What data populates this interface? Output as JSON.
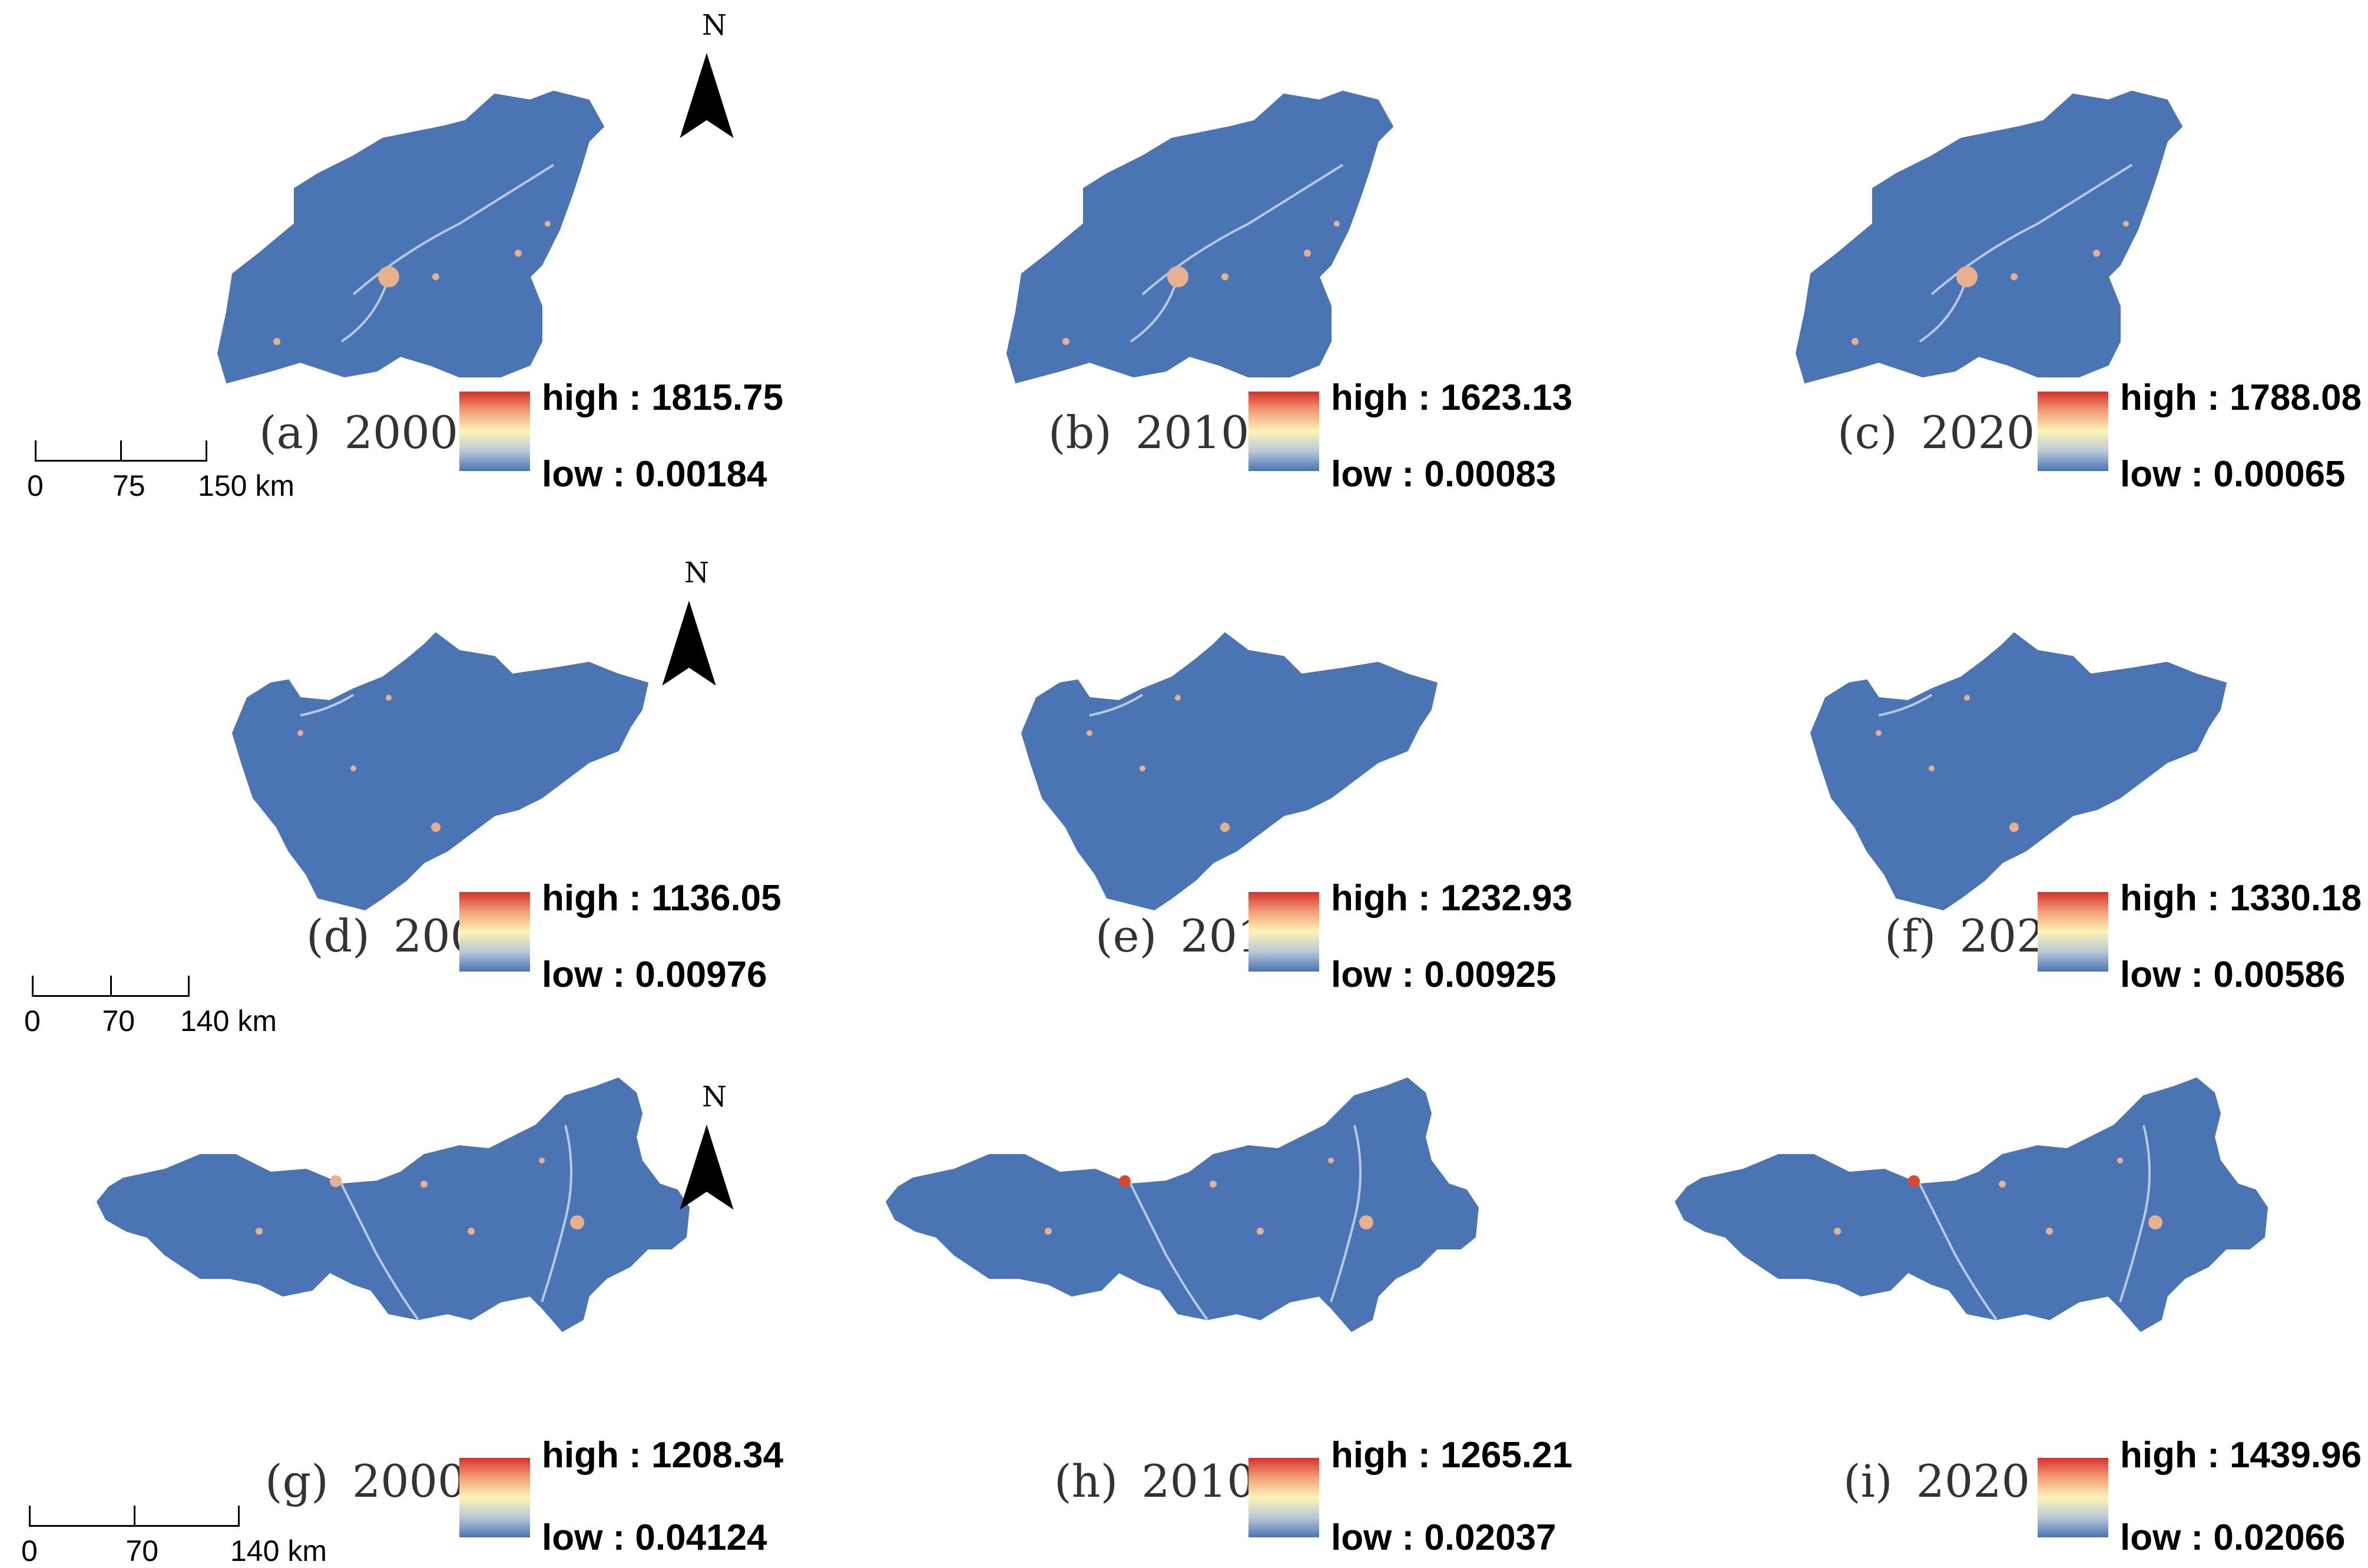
{
  "north_label": "N",
  "colors": {
    "low": "#4a74b4",
    "mid": "#fdf4b8",
    "high": "#d7302a"
  },
  "legend_labels": {
    "high": "high",
    "low": "low",
    "sep": ":"
  },
  "panels": [
    {
      "id": "a",
      "letter": "(a)",
      "year": "2000",
      "high": "1815.75",
      "low": "0.00184",
      "region": "shandong-west"
    },
    {
      "id": "b",
      "letter": "(b)",
      "year": "2010",
      "high": "1623.13",
      "low": "0.00083",
      "region": "shandong-west"
    },
    {
      "id": "c",
      "letter": "(c)",
      "year": "2020",
      "high": "1788.08",
      "low": "0.00065",
      "region": "shandong-west"
    },
    {
      "id": "d",
      "letter": "(d)",
      "year": "2000",
      "high": "1136.05",
      "low": "0.00976",
      "region": "shandong-east"
    },
    {
      "id": "e",
      "letter": "(e)",
      "year": "2010",
      "high": "1232.93",
      "low": "0.00925",
      "region": "shandong-east"
    },
    {
      "id": "f",
      "letter": "(f)",
      "year": "2020",
      "high": "1330.18",
      "low": "0.00586",
      "region": "shandong-east"
    },
    {
      "id": "g",
      "letter": "(g)",
      "year": "2000",
      "high": "1208.34",
      "low": "0.04124",
      "region": "south"
    },
    {
      "id": "h",
      "letter": "(h)",
      "year": "2010",
      "high": "1265.21",
      "low": "0.02037",
      "region": "south"
    },
    {
      "id": "i",
      "letter": "(i)",
      "year": "2020",
      "high": "1439.96",
      "low": "0.02066",
      "region": "south"
    }
  ],
  "scale_bars": [
    {
      "row": 1,
      "ticks": [
        "0",
        "75",
        "150 km"
      ]
    },
    {
      "row": 2,
      "ticks": [
        "0",
        "70",
        "140 km"
      ]
    },
    {
      "row": 3,
      "ticks": [
        "0",
        "70",
        "140 km"
      ]
    }
  ]
}
